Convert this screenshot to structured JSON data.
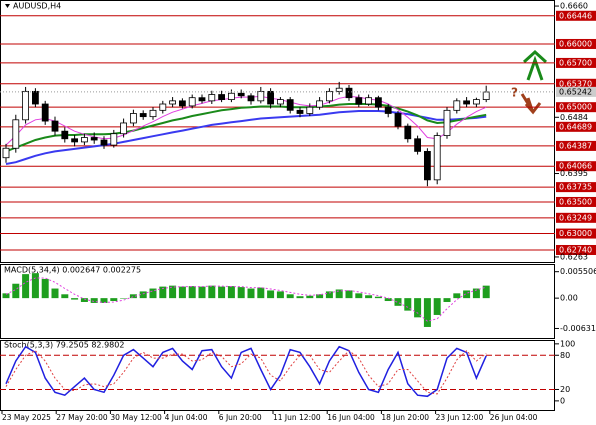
{
  "chart_data": [
    {
      "type": "candlestick",
      "title": "AUDUSD,H4",
      "ylim": [
        0.6255,
        0.6668
      ],
      "yticks": [
        {
          "value": 0.666,
          "label": "0.6660"
        },
        {
          "value": 0.6484,
          "label": "0.6484"
        },
        {
          "value": 0.6395,
          "label": "0.6395"
        },
        {
          "value": 0.6263,
          "label": "0.6263"
        }
      ],
      "levels": [
        {
          "value": 0.66446,
          "label": "0.66446"
        },
        {
          "value": 0.66,
          "label": "0.66000"
        },
        {
          "value": 0.657,
          "label": "0.65700"
        },
        {
          "value": 0.6537,
          "label": "0.65370"
        },
        {
          "value": 0.65,
          "label": "0.65000"
        },
        {
          "value": 0.64689,
          "label": "0.64689"
        },
        {
          "value": 0.64387,
          "label": "0.64387"
        },
        {
          "value": 0.64066,
          "label": "0.64066"
        },
        {
          "value": 0.63735,
          "label": "0.63735"
        },
        {
          "value": 0.635,
          "label": "0.63500"
        },
        {
          "value": 0.63249,
          "label": "0.63249"
        },
        {
          "value": 0.63,
          "label": "0.63000"
        },
        {
          "value": 0.6274,
          "label": "0.62740"
        }
      ],
      "level_color": "#c00000",
      "current": {
        "value": 0.65242,
        "label": "0.65242"
      },
      "x_labels": [
        "23 May 2025",
        "27 May 20:00",
        "30 May 12:00",
        "4 Jun 04:00",
        "6 Jun 20:00",
        "11 Jun 12:00",
        "16 Jun 04:00",
        "18 Jun 20:00",
        "23 Jun 12:00",
        "26 Jun 04:00"
      ],
      "annotations": [
        "?"
      ],
      "open": [
        0.642,
        0.6435,
        0.648,
        0.6525,
        0.6505,
        0.6478,
        0.6462,
        0.645,
        0.6445,
        0.6452,
        0.6448,
        0.644,
        0.6458,
        0.6475,
        0.649,
        0.6485,
        0.6495,
        0.6505,
        0.651,
        0.6502,
        0.6515,
        0.651,
        0.652,
        0.6512,
        0.6522,
        0.6518,
        0.651,
        0.6525,
        0.6505,
        0.6512,
        0.6495,
        0.649,
        0.65,
        0.651,
        0.6525,
        0.653,
        0.6515,
        0.6505,
        0.6515,
        0.65,
        0.649,
        0.647,
        0.645,
        0.643,
        0.6385,
        0.6455,
        0.6495,
        0.651,
        0.6505,
        0.6512
      ],
      "high": [
        0.6442,
        0.6488,
        0.6532,
        0.653,
        0.651,
        0.6485,
        0.6468,
        0.6456,
        0.6458,
        0.646,
        0.6454,
        0.6464,
        0.6482,
        0.6496,
        0.6495,
        0.65,
        0.651,
        0.6516,
        0.6514,
        0.652,
        0.652,
        0.6526,
        0.6526,
        0.6528,
        0.6528,
        0.6522,
        0.6532,
        0.653,
        0.6516,
        0.6516,
        0.65,
        0.6506,
        0.6516,
        0.653,
        0.654,
        0.6535,
        0.652,
        0.652,
        0.6518,
        0.6505,
        0.6494,
        0.6474,
        0.6455,
        0.6435,
        0.646,
        0.65,
        0.6514,
        0.6516,
        0.6515,
        0.6534
      ],
      "low": [
        0.6412,
        0.6428,
        0.6474,
        0.65,
        0.6472,
        0.6455,
        0.6444,
        0.6438,
        0.644,
        0.6442,
        0.6434,
        0.6436,
        0.6452,
        0.647,
        0.648,
        0.648,
        0.649,
        0.65,
        0.6498,
        0.6498,
        0.6506,
        0.6505,
        0.6508,
        0.6508,
        0.6514,
        0.6504,
        0.6506,
        0.6498,
        0.65,
        0.649,
        0.6484,
        0.6486,
        0.6496,
        0.6506,
        0.652,
        0.651,
        0.65,
        0.6502,
        0.6495,
        0.6484,
        0.6465,
        0.6444,
        0.6425,
        0.6375,
        0.6378,
        0.645,
        0.649,
        0.65,
        0.65,
        0.6508
      ],
      "close": [
        0.6435,
        0.648,
        0.6525,
        0.6505,
        0.6478,
        0.6462,
        0.645,
        0.6445,
        0.6452,
        0.6448,
        0.644,
        0.6458,
        0.6475,
        0.649,
        0.6485,
        0.6495,
        0.6505,
        0.651,
        0.6502,
        0.6515,
        0.651,
        0.652,
        0.6512,
        0.6522,
        0.6518,
        0.651,
        0.6525,
        0.6505,
        0.6512,
        0.6495,
        0.649,
        0.65,
        0.651,
        0.6525,
        0.653,
        0.6515,
        0.6505,
        0.6515,
        0.65,
        0.649,
        0.647,
        0.645,
        0.643,
        0.6385,
        0.6455,
        0.6495,
        0.651,
        0.6505,
        0.6512,
        0.6524
      ],
      "series": [
        {
          "color": "#3a3af0",
          "values": [
            0.641,
            0.6413,
            0.6418,
            0.6423,
            0.6427,
            0.643,
            0.6432,
            0.6434,
            0.6436,
            0.6438,
            0.644,
            0.6442,
            0.6445,
            0.6448,
            0.6451,
            0.6454,
            0.6457,
            0.646,
            0.6463,
            0.6466,
            0.6469,
            0.6472,
            0.6474,
            0.6476,
            0.6478,
            0.648,
            0.6482,
            0.6483,
            0.6484,
            0.6485,
            0.6486,
            0.6487,
            0.6488,
            0.649,
            0.6492,
            0.6493,
            0.6494,
            0.6494,
            0.6494,
            0.6493,
            0.6491,
            0.6489,
            0.6486,
            0.6483,
            0.648,
            0.648,
            0.6481,
            0.6482,
            0.6483,
            0.6485
          ]
        },
        {
          "color": "#1a8a1a",
          "values": [
            0.643,
            0.6436,
            0.6442,
            0.6448,
            0.6452,
            0.6455,
            0.6456,
            0.6456,
            0.6457,
            0.6457,
            0.6457,
            0.6458,
            0.646,
            0.6463,
            0.6467,
            0.6471,
            0.6475,
            0.6479,
            0.6482,
            0.6486,
            0.6489,
            0.6492,
            0.6495,
            0.6497,
            0.6499,
            0.65,
            0.6501,
            0.6501,
            0.6501,
            0.65,
            0.65,
            0.65,
            0.6501,
            0.6502,
            0.6504,
            0.6505,
            0.6505,
            0.6505,
            0.6504,
            0.6502,
            0.6498,
            0.6493,
            0.6487,
            0.6479,
            0.6475,
            0.6476,
            0.6479,
            0.6482,
            0.6485,
            0.6488
          ]
        },
        {
          "color": "#e040e0",
          "values": [
            0.644,
            0.6455,
            0.6472,
            0.648,
            0.6482,
            0.6478,
            0.647,
            0.6462,
            0.6457,
            0.6453,
            0.645,
            0.6451,
            0.6456,
            0.6463,
            0.647,
            0.6477,
            0.6485,
            0.6492,
            0.6497,
            0.6502,
            0.6506,
            0.651,
            0.6512,
            0.6514,
            0.6516,
            0.6516,
            0.6517,
            0.6514,
            0.6512,
            0.6508,
            0.6504,
            0.6502,
            0.6503,
            0.6508,
            0.6514,
            0.6517,
            0.6516,
            0.6513,
            0.6511,
            0.6505,
            0.6496,
            0.6484,
            0.647,
            0.6452,
            0.645,
            0.646,
            0.6473,
            0.6484,
            0.6493,
            0.65
          ]
        }
      ]
    },
    {
      "type": "macd",
      "title": "MACD(5,34,4) 0.002647 0.002275",
      "ylim": [
        -0.0083,
        0.0069
      ],
      "yticks": [
        {
          "value": 0.005506,
          "label": "0.005506"
        },
        {
          "value": 0,
          "label": "0.00"
        },
        {
          "value": -0.006315,
          "label": "-0.006315"
        }
      ],
      "histogram": {
        "color": "#1e9e1e",
        "values": [
          0.001,
          0.003,
          0.005,
          0.0052,
          0.004,
          0.002,
          0.0008,
          -0.0003,
          -0.0008,
          -0.001,
          -0.001,
          -0.0006,
          0.0,
          0.0008,
          0.0014,
          0.002,
          0.0024,
          0.0026,
          0.0024,
          0.0025,
          0.0024,
          0.0026,
          0.0024,
          0.0025,
          0.0023,
          0.002,
          0.0022,
          0.0016,
          0.0014,
          0.0008,
          0.0004,
          0.0005,
          0.0008,
          0.0014,
          0.0018,
          0.0016,
          0.001,
          0.0006,
          0.0003,
          -0.0006,
          -0.0016,
          -0.0026,
          -0.004,
          -0.006,
          -0.0035,
          -0.0008,
          0.001,
          0.0016,
          0.002,
          0.0026
        ]
      },
      "signal": {
        "color": "#e040e0",
        "values": [
          0.0008,
          0.0018,
          0.0033,
          0.0042,
          0.0042,
          0.0033,
          0.002,
          0.0008,
          -0.0002,
          -0.0007,
          -0.0009,
          -0.0008,
          -0.0004,
          0.0003,
          0.0009,
          0.0015,
          0.002,
          0.0023,
          0.0024,
          0.0024,
          0.0024,
          0.0025,
          0.0025,
          0.0024,
          0.0024,
          0.0022,
          0.0022,
          0.0019,
          0.0016,
          0.0012,
          0.0008,
          0.0006,
          0.0007,
          0.0011,
          0.0015,
          0.0016,
          0.0013,
          0.0009,
          0.0005,
          0.0,
          -0.0009,
          -0.0019,
          -0.0031,
          -0.0048,
          -0.0043,
          -0.0022,
          -0.0003,
          0.001,
          0.0017,
          0.0023
        ]
      }
    },
    {
      "type": "line",
      "title": "Stoch(5,3,3) 79.2505 82.9802",
      "ylim": [
        -16,
        105
      ],
      "yticks": [
        100,
        80,
        20,
        0
      ],
      "levels": [
        80,
        20
      ],
      "level_color": "#c00000",
      "series": [
        {
          "color": "#2020e0",
          "values": [
            30,
            70,
            95,
            85,
            40,
            15,
            10,
            25,
            40,
            20,
            15,
            45,
            80,
            90,
            75,
            60,
            85,
            92,
            70,
            55,
            88,
            90,
            60,
            40,
            85,
            92,
            55,
            20,
            45,
            90,
            85,
            60,
            30,
            70,
            95,
            88,
            50,
            20,
            15,
            55,
            85,
            30,
            10,
            8,
            20,
            75,
            92,
            85,
            40,
            79
          ]
        },
        {
          "color": "#e04040",
          "dashed": true,
          "values": [
            25,
            55,
            80,
            88,
            70,
            40,
            20,
            18,
            28,
            30,
            25,
            30,
            50,
            75,
            85,
            75,
            75,
            82,
            82,
            70,
            72,
            85,
            78,
            60,
            65,
            82,
            75,
            45,
            35,
            60,
            80,
            80,
            55,
            50,
            70,
            88,
            75,
            45,
            25,
            30,
            55,
            55,
            35,
            15,
            12,
            40,
            72,
            88,
            70,
            83
          ]
        }
      ]
    }
  ]
}
